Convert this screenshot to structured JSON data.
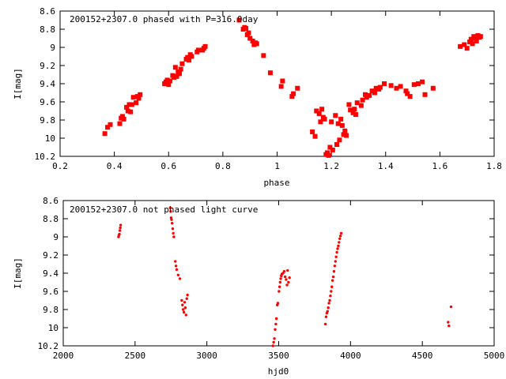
{
  "chart_data": [
    {
      "type": "scatter",
      "title": "200152+2307.0 phased with P=316.0day",
      "xlabel": "phase",
      "ylabel": "I[mag]",
      "xlim": [
        0.2,
        1.8
      ],
      "ylim": [
        8.6,
        10.2
      ],
      "y_inverted": true,
      "grid": false,
      "marker_color": "#ff0000",
      "marker": "filled-square",
      "x_ticks": [
        0.2,
        0.4,
        0.6,
        0.8,
        1.0,
        1.2,
        1.4,
        1.6,
        1.8
      ],
      "x_tick_labels": [
        "0.2",
        "0.4",
        "0.6",
        "0.8",
        "1",
        "1.2",
        "1.4",
        "1.6",
        "1.8"
      ],
      "y_ticks": [
        8.6,
        8.8,
        9.0,
        9.2,
        9.4,
        9.6,
        9.8,
        10.0,
        10.2
      ],
      "y_tick_labels": [
        "8.6",
        "8.8",
        "9",
        "9.2",
        "9.4",
        "9.6",
        "9.8",
        "10",
        "10.2"
      ],
      "points": [
        [
          0.365,
          9.95
        ],
        [
          0.375,
          9.88
        ],
        [
          0.385,
          9.85
        ],
        [
          0.42,
          9.84
        ],
        [
          0.425,
          9.78
        ],
        [
          0.43,
          9.76
        ],
        [
          0.435,
          9.79
        ],
        [
          0.445,
          9.66
        ],
        [
          0.45,
          9.7
        ],
        [
          0.455,
          9.63
        ],
        [
          0.46,
          9.71
        ],
        [
          0.465,
          9.63
        ],
        [
          0.47,
          9.55
        ],
        [
          0.48,
          9.61
        ],
        [
          0.485,
          9.54
        ],
        [
          0.49,
          9.56
        ],
        [
          0.495,
          9.52
        ],
        [
          0.585,
          9.4
        ],
        [
          0.59,
          9.38
        ],
        [
          0.595,
          9.36
        ],
        [
          0.6,
          9.41
        ],
        [
          0.605,
          9.37
        ],
        [
          0.615,
          9.31
        ],
        [
          0.62,
          9.33
        ],
        [
          0.625,
          9.22
        ],
        [
          0.63,
          9.32
        ],
        [
          0.635,
          9.27
        ],
        [
          0.64,
          9.29
        ],
        [
          0.645,
          9.24
        ],
        [
          0.65,
          9.18
        ],
        [
          0.665,
          9.13
        ],
        [
          0.67,
          9.11
        ],
        [
          0.675,
          9.14
        ],
        [
          0.68,
          9.08
        ],
        [
          0.685,
          9.1
        ],
        [
          0.705,
          9.05
        ],
        [
          0.71,
          9.03
        ],
        [
          0.725,
          9.03
        ],
        [
          0.73,
          9.01
        ],
        [
          0.735,
          8.99
        ],
        [
          0.86,
          8.7
        ],
        [
          0.875,
          8.8
        ],
        [
          0.88,
          8.78
        ],
        [
          0.885,
          8.79
        ],
        [
          0.89,
          8.86
        ],
        [
          0.895,
          8.84
        ],
        [
          0.9,
          8.9
        ],
        [
          0.91,
          8.93
        ],
        [
          0.915,
          8.97
        ],
        [
          0.92,
          8.95
        ],
        [
          0.925,
          8.96
        ],
        [
          0.95,
          9.09
        ],
        [
          0.975,
          9.28
        ],
        [
          1.015,
          9.43
        ],
        [
          1.02,
          9.37
        ],
        [
          1.055,
          9.54
        ],
        [
          1.06,
          9.51
        ],
        [
          1.075,
          9.45
        ],
        [
          1.13,
          9.93
        ],
        [
          1.14,
          9.98
        ],
        [
          1.145,
          9.7
        ],
        [
          1.155,
          9.73
        ],
        [
          1.16,
          9.82
        ],
        [
          1.165,
          9.68
        ],
        [
          1.17,
          9.77
        ],
        [
          1.175,
          9.79
        ],
        [
          1.18,
          10.18
        ],
        [
          1.185,
          10.16
        ],
        [
          1.19,
          10.19
        ],
        [
          1.195,
          10.1
        ],
        [
          1.2,
          9.82
        ],
        [
          1.205,
          10.13
        ],
        [
          1.215,
          9.75
        ],
        [
          1.22,
          10.07
        ],
        [
          1.225,
          9.84
        ],
        [
          1.23,
          10.02
        ],
        [
          1.235,
          9.79
        ],
        [
          1.24,
          9.86
        ],
        [
          1.245,
          9.96
        ],
        [
          1.25,
          9.92
        ],
        [
          1.255,
          9.97
        ],
        [
          1.265,
          9.63
        ],
        [
          1.27,
          9.69
        ],
        [
          1.28,
          9.72
        ],
        [
          1.285,
          9.68
        ],
        [
          1.29,
          9.74
        ],
        [
          1.295,
          9.61
        ],
        [
          1.31,
          9.64
        ],
        [
          1.315,
          9.58
        ],
        [
          1.325,
          9.52
        ],
        [
          1.33,
          9.55
        ],
        [
          1.34,
          9.53
        ],
        [
          1.35,
          9.48
        ],
        [
          1.36,
          9.5
        ],
        [
          1.365,
          9.45
        ],
        [
          1.375,
          9.46
        ],
        [
          1.38,
          9.44
        ],
        [
          1.395,
          9.4
        ],
        [
          1.42,
          9.42
        ],
        [
          1.44,
          9.45
        ],
        [
          1.455,
          9.43
        ],
        [
          1.475,
          9.48
        ],
        [
          1.48,
          9.51
        ],
        [
          1.49,
          9.54
        ],
        [
          1.505,
          9.41
        ],
        [
          1.52,
          9.4
        ],
        [
          1.535,
          9.38
        ],
        [
          1.545,
          9.52
        ],
        [
          1.575,
          9.45
        ],
        [
          1.675,
          8.99
        ],
        [
          1.69,
          8.97
        ],
        [
          1.7,
          9.01
        ],
        [
          1.71,
          8.94
        ],
        [
          1.715,
          8.91
        ],
        [
          1.72,
          8.96
        ],
        [
          1.725,
          8.88
        ],
        [
          1.73,
          8.9
        ],
        [
          1.735,
          8.93
        ],
        [
          1.74,
          8.87
        ],
        [
          1.745,
          8.89
        ],
        [
          1.75,
          8.88
        ]
      ]
    },
    {
      "type": "scatter",
      "title": "200152+2307.0 not phased light curve",
      "xlabel": "hjd0",
      "ylabel": "I[mag]",
      "xlim": [
        2000,
        5000
      ],
      "ylim": [
        8.6,
        10.2
      ],
      "y_inverted": true,
      "grid": false,
      "marker_color": "#ff0000",
      "marker": "small-dot",
      "x_ticks": [
        2000,
        2500,
        3000,
        3500,
        4000,
        4500,
        5000
      ],
      "x_tick_labels": [
        "2000",
        "2500",
        "3000",
        "3500",
        "4000",
        "4500",
        "5000"
      ],
      "y_ticks": [
        8.6,
        8.8,
        9.0,
        9.2,
        9.4,
        9.6,
        9.8,
        10.0,
        10.2
      ],
      "y_tick_labels": [
        "8.6",
        "8.8",
        "9",
        "9.2",
        "9.4",
        "9.6",
        "9.8",
        "10",
        "10.2"
      ],
      "points": [
        [
          2385,
          9.0
        ],
        [
          2388,
          8.98
        ],
        [
          2391,
          8.97
        ],
        [
          2394,
          8.93
        ],
        [
          2397,
          8.9
        ],
        [
          2400,
          8.87
        ],
        [
          2745,
          8.68
        ],
        [
          2748,
          8.72
        ],
        [
          2751,
          8.79
        ],
        [
          2754,
          8.81
        ],
        [
          2758,
          8.85
        ],
        [
          2762,
          8.91
        ],
        [
          2766,
          8.96
        ],
        [
          2770,
          9.0
        ],
        [
          2780,
          9.27
        ],
        [
          2785,
          9.32
        ],
        [
          2790,
          9.36
        ],
        [
          2800,
          9.42
        ],
        [
          2812,
          9.46
        ],
        [
          2825,
          9.7
        ],
        [
          2830,
          9.75
        ],
        [
          2835,
          9.8
        ],
        [
          2840,
          9.83
        ],
        [
          2845,
          9.72
        ],
        [
          2850,
          9.78
        ],
        [
          2855,
          9.86
        ],
        [
          2860,
          9.68
        ],
        [
          2865,
          9.64
        ],
        [
          3460,
          10.2
        ],
        [
          3465,
          10.16
        ],
        [
          3470,
          10.12
        ],
        [
          3475,
          10.02
        ],
        [
          3480,
          9.96
        ],
        [
          3484,
          9.9
        ],
        [
          3490,
          9.75
        ],
        [
          3494,
          9.73
        ],
        [
          3502,
          9.6
        ],
        [
          3506,
          9.55
        ],
        [
          3510,
          9.5
        ],
        [
          3514,
          9.46
        ],
        [
          3518,
          9.43
        ],
        [
          3522,
          9.41
        ],
        [
          3530,
          9.4
        ],
        [
          3538,
          9.38
        ],
        [
          3545,
          9.44
        ],
        [
          3552,
          9.47
        ],
        [
          3558,
          9.53
        ],
        [
          3562,
          9.37
        ],
        [
          3568,
          9.5
        ],
        [
          3575,
          9.45
        ],
        [
          3825,
          9.96
        ],
        [
          3830,
          9.88
        ],
        [
          3835,
          9.84
        ],
        [
          3840,
          9.82
        ],
        [
          3845,
          9.78
        ],
        [
          3850,
          9.73
        ],
        [
          3855,
          9.7
        ],
        [
          3860,
          9.65
        ],
        [
          3865,
          9.6
        ],
        [
          3870,
          9.55
        ],
        [
          3875,
          9.48
        ],
        [
          3880,
          9.44
        ],
        [
          3885,
          9.38
        ],
        [
          3890,
          9.32
        ],
        [
          3895,
          9.27
        ],
        [
          3900,
          9.22
        ],
        [
          3905,
          9.17
        ],
        [
          3910,
          9.13
        ],
        [
          3915,
          9.1
        ],
        [
          3920,
          9.06
        ],
        [
          3925,
          9.02
        ],
        [
          3930,
          8.99
        ],
        [
          3935,
          8.96
        ],
        [
          4680,
          9.94
        ],
        [
          4685,
          9.98
        ],
        [
          4700,
          9.77
        ]
      ]
    }
  ]
}
